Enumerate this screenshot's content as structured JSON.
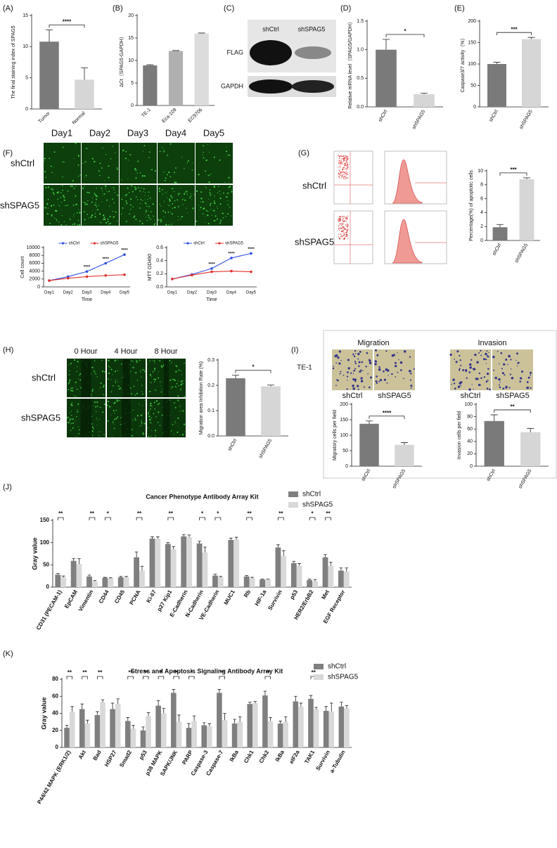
{
  "figure": {
    "panel_labels": [
      "(A)",
      "(B)",
      "(C)",
      "(D)",
      "(E)",
      "(F)",
      "(G)",
      "(H)",
      "(I)",
      "(J)",
      "(K)"
    ],
    "blot": {
      "lanes": [
        "shCtrl",
        "shSPAG5"
      ],
      "rows": [
        "FLAG",
        "GAPDH"
      ]
    },
    "proliferation": {
      "columns": [
        "Day1",
        "Day2",
        "Day3",
        "Day4",
        "Day5"
      ],
      "rows": [
        "shCtrl",
        "shSPAG5"
      ]
    },
    "flow": {
      "rows": [
        "shCtrl",
        "shSPAG5"
      ]
    },
    "wound": {
      "columns": [
        "0 Hour",
        "4 Hour",
        "8 Hour"
      ],
      "rows": [
        "shCtrl",
        "shSPAG5"
      ]
    },
    "transwell": {
      "titles": [
        "Migration",
        "Invasion"
      ],
      "cell_line": "TE-1",
      "lanes": [
        "shCtrl",
        "shSPAG5",
        "shCtrl",
        "shSPAG5"
      ]
    }
  },
  "chart_data": [
    {
      "type": "bar",
      "ylabel": "The final staining index of SPAG5",
      "categories": [
        "Tumor",
        "Normal"
      ],
      "values": [
        10.8,
        4.7
      ],
      "errors": [
        1.9,
        1.9
      ],
      "colors": [
        "#7a7a7a",
        "#d6d6d6"
      ],
      "ylim": [
        0,
        15
      ],
      "yticks": [
        0,
        5,
        10,
        15
      ],
      "significance": "****"
    },
    {
      "type": "bar",
      "ylabel": "ΔCt（SPAG5-GAPDH）",
      "categories": [
        "TE-1",
        "Eca-109",
        "EC9706"
      ],
      "values": [
        8.9,
        12.1,
        16.0
      ],
      "errors": [
        0.15,
        0.1,
        0.1
      ],
      "colors": [
        "#7a7a7a",
        "#b0b0b0",
        "#dcdcdc"
      ],
      "ylim": [
        0,
        20
      ],
      "yticks": [
        0,
        5,
        10,
        15,
        20
      ]
    },
    {
      "type": "bar",
      "ylabel": "Relative mRNA level（SPAG5/GAPDH）",
      "categories": [
        "shCtrl",
        "shSPAG5"
      ],
      "values": [
        1.0,
        0.22
      ],
      "errors": [
        0.18,
        0.02
      ],
      "colors": [
        "#7a7a7a",
        "#d6d6d6"
      ],
      "ylim": [
        0,
        1.5
      ],
      "yticks": [
        {
          "value": 0,
          "label": "0.0"
        },
        0.5,
        {
          "value": 1,
          "label": "1.0"
        },
        1.5
      ],
      "significance": "*"
    },
    {
      "type": "bar",
      "ylabel": "Caspase3/7 activity（%）",
      "categories": [
        "shCtrl",
        "shSPAG5"
      ],
      "values": [
        100,
        158
      ],
      "errors": [
        4,
        4
      ],
      "colors": [
        "#7a7a7a",
        "#d6d6d6"
      ],
      "ylim": [
        0,
        200
      ],
      "yticks": [
        0,
        50,
        100,
        150,
        200
      ],
      "significance": "***"
    },
    {
      "type": "line",
      "ylabel": "Cell count",
      "xlabel": "Time",
      "categories": [
        "Day1",
        "Day2",
        "Day3",
        "Day4",
        "Day5"
      ],
      "series": [
        {
          "name": "shCtrl",
          "color": "#2f4fe0",
          "values": [
            1600,
            2600,
            3900,
            6000,
            8200
          ]
        },
        {
          "name": "shSPAG5",
          "color": "#e0302a",
          "values": [
            1600,
            2200,
            2600,
            2900,
            3100
          ]
        }
      ],
      "ylim": [
        0,
        10000
      ],
      "yticks": [
        0,
        2000,
        4000,
        6000,
        8000,
        10000
      ],
      "significance": [
        null,
        null,
        "****",
        "****",
        "****"
      ],
      "legend": "upper center"
    },
    {
      "type": "line",
      "ylabel": "MTT OD490",
      "xlabel": "Time",
      "categories": [
        "Day1",
        "Day2",
        "Day3",
        "Day4",
        "Day5"
      ],
      "series": [
        {
          "name": "shCtrl",
          "color": "#2f4fe0",
          "values": [
            0.12,
            0.19,
            0.28,
            0.44,
            0.51
          ]
        },
        {
          "name": "shSPAG5",
          "color": "#e0302a",
          "values": [
            0.12,
            0.18,
            0.23,
            0.24,
            0.23
          ]
        }
      ],
      "ylim": [
        0,
        0.6
      ],
      "yticks": [
        {
          "value": 0,
          "label": "0.0"
        },
        0.2,
        0.4,
        0.6
      ],
      "significance": [
        null,
        null,
        "****",
        "****",
        "****"
      ],
      "legend": "upper center"
    },
    {
      "type": "bar",
      "ylabel": "Percentage(%) of apoptotic cells",
      "categories": [
        "shCtrl",
        "shSPAG5"
      ],
      "values": [
        1.9,
        8.8
      ],
      "errors": [
        0.4,
        0.2
      ],
      "colors": [
        "#7a7a7a",
        "#d6d6d6"
      ],
      "ylim": [
        0,
        10
      ],
      "yticks": [
        0,
        2,
        4,
        6,
        8,
        10
      ],
      "significance": "***"
    },
    {
      "type": "bar",
      "ylabel": "Migration area Inhibition Rate (%)",
      "categories": [
        "shCtrl",
        "shSPAG5"
      ],
      "values": [
        0.228,
        0.196
      ],
      "errors": [
        0.012,
        0.005
      ],
      "colors": [
        "#7a7a7a",
        "#d6d6d6"
      ],
      "ylim": [
        0,
        0.3
      ],
      "yticks": [
        {
          "value": 0,
          "label": "0.0"
        },
        0.1,
        0.2,
        0.3
      ],
      "significance": "*"
    },
    {
      "type": "bar",
      "ylabel": "Migratory cells per field",
      "categories": [
        "shCtrl",
        "shSPAG5"
      ],
      "values": [
        137,
        69
      ],
      "errors": [
        9,
        7
      ],
      "colors": [
        "#7a7a7a",
        "#d6d6d6"
      ],
      "ylim": [
        0,
        200
      ],
      "yticks": [
        0,
        50,
        100,
        150,
        200
      ],
      "significance": "****"
    },
    {
      "type": "bar",
      "ylabel": "Invasion cells per field",
      "categories": [
        "shCtrl",
        "shSPAG5"
      ],
      "values": [
        73,
        55
      ],
      "errors": [
        10,
        6
      ],
      "colors": [
        "#7a7a7a",
        "#d6d6d6"
      ],
      "ylim": [
        0,
        100
      ],
      "yticks": [
        0,
        20,
        40,
        60,
        80,
        100
      ],
      "significance": "**"
    },
    {
      "type": "bar",
      "title": "Cancer Phenotype Antibody Array Kit",
      "ylabel": "Gray value",
      "legend": "upper right",
      "categories": [
        "CD31 (PECAM-1)",
        "EpCAM",
        "Vimentin",
        "CD44",
        "CD45",
        "PCNA",
        "Ki-67",
        "p27 Kip1",
        "E-Cadherin",
        "N-Cadherin",
        "VE-Cadherin",
        "MUC1",
        "Rb",
        "HIF-1a",
        "Survivin",
        "p53",
        "HER2/ErbB2",
        "Met",
        "EGF Receptor"
      ],
      "series": [
        {
          "name": "shCtrl",
          "color": "#7f7f7f",
          "values": [
            28,
            59,
            24,
            21,
            22,
            67,
            109,
            97,
            114,
            98,
            26,
            106,
            24,
            17,
            89,
            54,
            16,
            67,
            37
          ],
          "errors": [
            3,
            5,
            3,
            1,
            2,
            12,
            4,
            3,
            4,
            5,
            3,
            4,
            2,
            1,
            6,
            4,
            2,
            6,
            6
          ]
        },
        {
          "name": "shSPAG5",
          "color": "#d9d9d9",
          "values": [
            22,
            52,
            13,
            20,
            22,
            37,
            109,
            85,
            112,
            78,
            22,
            107,
            20,
            17,
            70,
            48,
            13,
            48,
            35
          ],
          "errors": [
            3,
            12,
            2,
            1,
            2,
            10,
            4,
            6,
            5,
            12,
            2,
            5,
            2,
            1,
            12,
            5,
            4,
            8,
            8
          ]
        }
      ],
      "ylim": [
        0,
        150
      ],
      "yticks": [
        0,
        50,
        100,
        150
      ],
      "significance": [
        "**",
        null,
        "**",
        "*",
        null,
        "**",
        null,
        "**",
        null,
        "*",
        "*",
        null,
        "**",
        null,
        "**",
        null,
        "*",
        "**",
        null
      ]
    },
    {
      "type": "bar",
      "title": "Stress and Apoptosis Signaling Antibody Array Kit",
      "ylabel": "Gray value",
      "legend": "upper right",
      "categories": [
        "P44/42 MAPK (ERK1/2)",
        "Akt",
        "Bad",
        "HSP27",
        "Smad2",
        "p53",
        "p38 MAPK",
        "SAPK/JNK",
        "PARP",
        "Caspase-3",
        "Caspase-7",
        "IkBa",
        "Chk1",
        "Chk2",
        "IkBa",
        "eIF2a",
        "TAK1",
        "Survivin",
        "a-Tubulin"
      ],
      "series": [
        {
          "name": "shCtrl",
          "color": "#7f7f7f",
          "values": [
            23,
            45,
            38,
            45,
            31,
            20,
            49,
            64,
            23,
            26,
            64,
            28,
            51,
            61,
            28,
            54,
            57,
            43,
            48
          ],
          "errors": [
            3,
            6,
            4,
            7,
            4,
            4,
            6,
            4,
            5,
            3,
            4,
            5,
            2,
            5,
            3,
            6,
            4,
            5,
            5
          ]
        },
        {
          "name": "shSPAG5",
          "color": "#d9d9d9",
          "values": [
            42,
            28,
            53,
            51,
            22,
            37,
            40,
            30,
            31,
            25,
            32,
            30,
            52,
            31,
            30,
            48,
            45,
            42,
            46
          ],
          "errors": [
            6,
            4,
            3,
            6,
            4,
            4,
            6,
            8,
            6,
            3,
            8,
            6,
            2,
            4,
            6,
            4,
            2,
            10,
            3
          ]
        }
      ],
      "ylim": [
        0,
        80
      ],
      "yticks": [
        0,
        20,
        40,
        60,
        80
      ],
      "significance": [
        "**",
        "**",
        "**",
        null,
        "**",
        "**",
        "*",
        "**",
        "*",
        null,
        "**",
        null,
        null,
        "**",
        null,
        null,
        "**",
        null,
        null
      ]
    }
  ]
}
